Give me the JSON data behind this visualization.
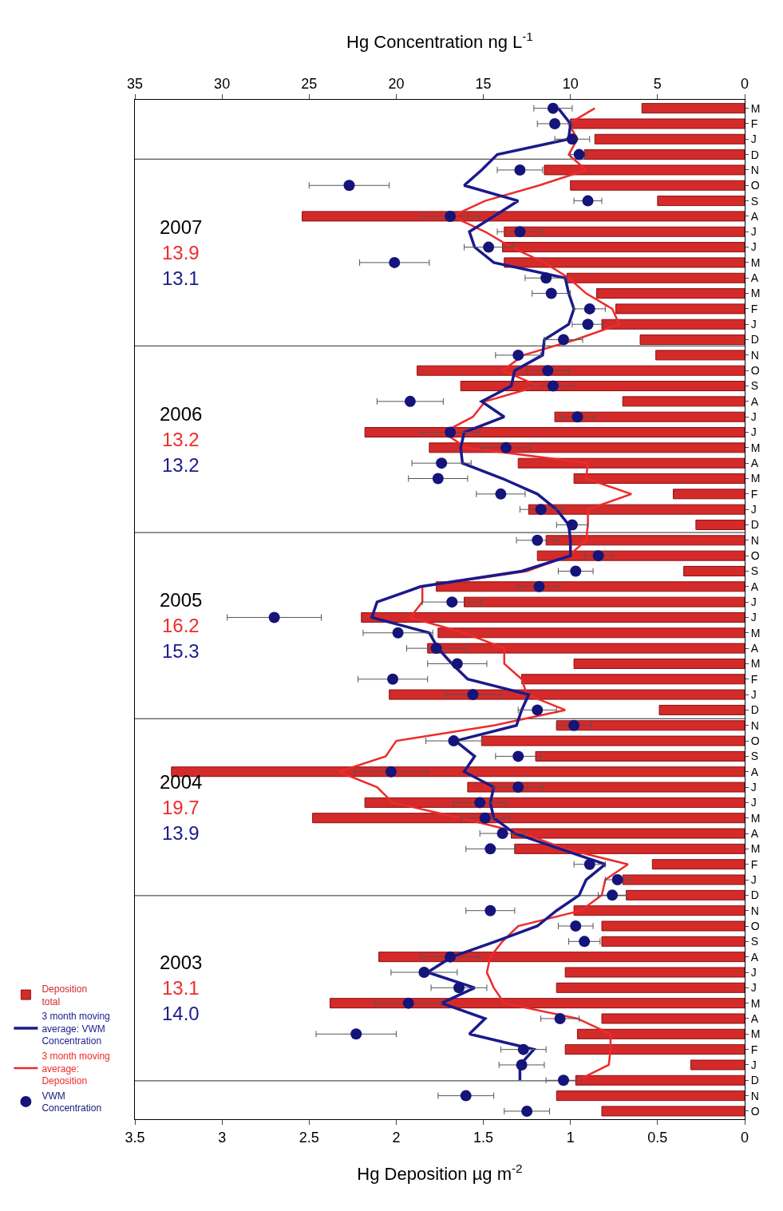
{
  "chart_data": {
    "type": "bar",
    "orientation": "horizontal",
    "xlabel": "Hg Deposition µg m$^{-2}$",
    "x2label": "Hg Concentration ng L$^{-1}$",
    "categories": [
      "M",
      "F",
      "J",
      "D",
      "N",
      "O",
      "S",
      "A",
      "J",
      "J",
      "M",
      "A",
      "M",
      "F",
      "J",
      "D",
      "N",
      "O",
      "S",
      "A",
      "J",
      "J",
      "M",
      "A",
      "M",
      "F",
      "J",
      "D",
      "N",
      "O",
      "S",
      "A",
      "J",
      "J",
      "M",
      "A",
      "M",
      "F",
      "J",
      "D",
      "N",
      "O",
      "S",
      "A",
      "J",
      "J",
      "M",
      "A",
      "M",
      "F",
      "J",
      "D",
      "N",
      "O",
      "S",
      "A",
      "J",
      "J",
      "M",
      "A",
      "M",
      "F",
      "J",
      "D",
      "N",
      "O"
    ],
    "xlim": [
      3.5,
      0
    ],
    "xticks": [
      3.5,
      3,
      2.5,
      2,
      1.5,
      1,
      0.5,
      0
    ],
    "x2lim": [
      35,
      0
    ],
    "x2ticks": [
      35,
      30,
      25,
      20,
      15,
      10,
      5,
      0
    ],
    "legend": "left",
    "series": [
      {
        "name": "Deposition total",
        "color": "#d42a2a",
        "values": [
          0.59,
          1.0,
          0.86,
          0.92,
          1.15,
          1.0,
          0.5,
          2.54,
          1.38,
          1.39,
          1.38,
          1.02,
          0.85,
          0.74,
          0.82,
          0.6,
          0.51,
          1.88,
          1.63,
          0.7,
          1.09,
          2.18,
          1.81,
          1.3,
          0.98,
          0.41,
          1.24,
          0.28,
          1.14,
          1.19,
          0.35,
          1.77,
          1.61,
          2.2,
          1.76,
          1.82,
          0.98,
          1.28,
          2.04,
          0.49,
          1.08,
          1.51,
          1.2,
          3.29,
          1.59,
          2.18,
          2.48,
          1.34,
          1.32,
          0.53,
          0.7,
          0.68,
          0.98,
          0.82,
          0.82,
          2.1,
          1.03,
          1.08,
          2.38,
          0.82,
          0.96,
          1.03,
          0.31,
          0.97,
          1.08,
          0.82
        ]
      },
      {
        "name": "VWM Concentration",
        "type": "scatter",
        "axis": "x2",
        "marker": "circle",
        "color": "#14147a",
        "values": [
          11.0,
          10.9,
          9.9,
          9.5,
          12.9,
          22.7,
          9.0,
          16.9,
          12.9,
          14.7,
          20.1,
          11.4,
          11.1,
          8.9,
          9.0,
          10.4,
          13.0,
          11.3,
          11.0,
          19.2,
          9.6,
          16.9,
          13.7,
          17.4,
          17.6,
          14.0,
          11.7,
          9.9,
          11.9,
          8.4,
          9.7,
          11.8,
          16.8,
          27.0,
          19.9,
          17.7,
          16.5,
          20.2,
          15.6,
          11.9,
          9.8,
          16.7,
          13.0,
          20.3,
          13.0,
          15.2,
          14.9,
          13.9,
          14.6,
          8.9,
          7.3,
          7.6,
          14.6,
          9.7,
          9.2,
          16.9,
          18.4,
          16.4,
          19.3,
          10.6,
          22.3,
          12.7,
          12.8,
          10.4,
          16.0,
          12.5
        ],
        "errors": [
          1.1,
          1.0,
          1.0,
          0.5,
          1.3,
          2.3,
          0.8,
          1.7,
          1.3,
          1.4,
          2.0,
          1.2,
          1.1,
          0.9,
          0.9,
          1.1,
          1.3,
          1.2,
          1.2,
          1.9,
          1.0,
          1.7,
          1.4,
          1.7,
          1.7,
          1.4,
          1.2,
          0.9,
          1.2,
          0.8,
          1.0,
          1.2,
          1.7,
          2.7,
          2.0,
          1.7,
          1.7,
          2.0,
          1.6,
          1.1,
          1.0,
          1.6,
          1.3,
          2.1,
          1.4,
          1.5,
          1.4,
          1.3,
          1.4,
          0.9,
          0.7,
          0.8,
          1.4,
          1.0,
          0.9,
          1.7,
          1.9,
          1.6,
          1.9,
          1.1,
          2.3,
          1.3,
          1.3,
          1.0,
          1.6,
          1.3
        ]
      },
      {
        "name": "3 month moving average: VWM Concentration",
        "type": "line",
        "axis": "x2",
        "color": "#1a1a8c",
        "values": [
          10.7,
          10.0,
          10.1,
          14.2,
          15.1,
          16.1,
          13.0,
          14.4,
          15.8,
          15.5,
          14.4,
          10.3,
          10.1,
          9.8,
          10.1,
          11.5,
          11.6,
          13.2,
          13.4,
          15.1,
          13.8,
          16.1,
          16.3,
          16.2,
          13.9,
          11.9,
          10.8,
          10.1,
          10.0,
          10.0,
          12.8,
          18.6,
          21.1,
          21.4,
          18.1,
          17.6,
          16.8,
          15.9,
          12.4,
          12.8,
          13.1,
          16.6,
          15.5,
          16.1,
          14.4,
          14.6,
          14.4,
          13.2,
          10.6,
          8.0,
          9.1,
          9.5,
          10.8,
          11.9,
          14.3,
          16.8,
          18.2,
          15.5,
          17.4,
          14.9,
          15.8,
          12.1,
          12.9,
          12.9,
          null,
          null
        ]
      },
      {
        "name": "3 month moving average: Deposition",
        "type": "line",
        "color": "#ee2b2b",
        "values": [
          0.86,
          1.01,
          0.96,
          1.01,
          0.91,
          1.18,
          1.49,
          1.68,
          1.49,
          1.34,
          1.15,
          1.01,
          0.91,
          0.76,
          0.72,
          0.97,
          1.27,
          1.39,
          1.18,
          1.49,
          1.56,
          1.73,
          1.6,
          0.9,
          0.91,
          0.65,
          0.9,
          0.9,
          0.91,
          1.01,
          1.25,
          1.85,
          1.85,
          1.92,
          1.61,
          1.38,
          1.38,
          1.28,
          1.25,
          1.03,
          1.44,
          2.0,
          2.06,
          2.33,
          2.11,
          2.02,
          1.63,
          1.27,
          1.03,
          0.67,
          0.8,
          0.82,
          0.94,
          1.3,
          1.39,
          1.46,
          1.48,
          1.44,
          1.38,
          0.96,
          0.77,
          0.77,
          0.78,
          0.96,
          null,
          null
        ]
      }
    ],
    "annotations": [
      "2007",
      "13.9",
      "13.1",
      "2006",
      "13.2",
      "13.2",
      "2005",
      "16.2",
      "15.3",
      "2004",
      "19.7",
      "13.9",
      "2003",
      "13.1",
      "14.0"
    ]
  }
}
